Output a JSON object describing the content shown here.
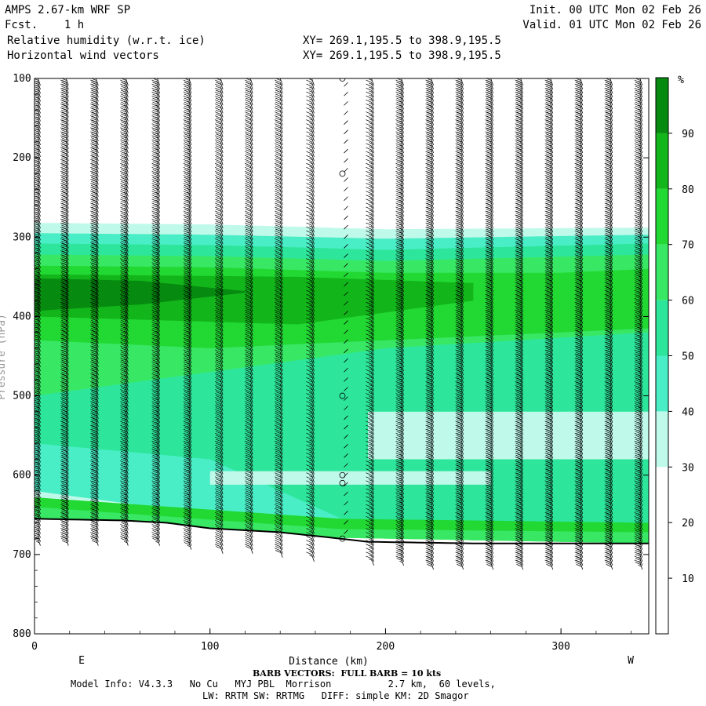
{
  "header": {
    "model_title": "AMPS 2.67-km WRF SP",
    "forecast": "Fcst.    1 h",
    "field_1": "Relative humidity (w.r.t. ice)",
    "field_2": "Horizontal wind vectors",
    "init": "Init. 00 UTC Mon 02 Feb 26",
    "valid": "Valid. 01 UTC Mon 02 Feb 26",
    "xy_1": "XY= 269.1,195.5 to 398.9,195.5",
    "xy_2": "XY= 269.1,195.5 to 398.9,195.5"
  },
  "footer": {
    "barb_note": "BARB VECTORS:  FULL BARB = 10 kts",
    "model_info": "Model Info: V4.3.3   No Cu   MYJ PBL  Morrison          2.7 km,  60 levels,",
    "physics_info": "LW: RRTM SW: RRTMG   DIFF: simple KM: 2D Smagor"
  },
  "chart_data": {
    "type": "heatmap",
    "title": "Relative humidity (w.r.t. ice) cross-section with horizontal wind barbs",
    "xlabel": "Distance (km)",
    "ylabel": "Pressure (hPa)",
    "xlim": [
      0,
      350
    ],
    "ylim": [
      100,
      800
    ],
    "x_ticks": [
      0,
      100,
      200,
      300
    ],
    "y_ticks": [
      100,
      200,
      300,
      400,
      500,
      600,
      700,
      800
    ],
    "x_end_labels": {
      "left": "E",
      "right": "W"
    },
    "colorbar": {
      "unit": "%",
      "ticks": [
        10,
        20,
        30,
        40,
        50,
        60,
        70,
        80,
        90
      ],
      "levels": [
        {
          "from": 0,
          "to": 30,
          "color": "#ffffff"
        },
        {
          "from": 30,
          "to": 40,
          "color": "#bff9ea"
        },
        {
          "from": 40,
          "to": 50,
          "color": "#4aeec6"
        },
        {
          "from": 50,
          "to": 60,
          "color": "#2de69b"
        },
        {
          "from": 60,
          "to": 70,
          "color": "#38e864"
        },
        {
          "from": 70,
          "to": 80,
          "color": "#22d833"
        },
        {
          "from": 80,
          "to": 90,
          "color": "#12b51a"
        },
        {
          "from": 90,
          "to": 100,
          "color": "#068b10"
        }
      ]
    },
    "terrain_surface_hpa": [
      [
        0,
        655
      ],
      [
        50,
        657
      ],
      [
        75,
        660
      ],
      [
        100,
        667
      ],
      [
        140,
        672
      ],
      [
        170,
        679
      ],
      [
        190,
        684
      ],
      [
        250,
        686
      ],
      [
        350,
        686
      ]
    ],
    "rh_layers": [
      {
        "rh": 35,
        "top": [
          [
            0,
            282
          ],
          [
            100,
            284
          ],
          [
            200,
            290
          ],
          [
            350,
            288
          ]
        ],
        "bottom": [
          [
            0,
            650
          ],
          [
            175,
            676
          ],
          [
            350,
            680
          ]
        ]
      },
      {
        "rh": 45,
        "top": [
          [
            0,
            295
          ],
          [
            100,
            297
          ],
          [
            200,
            302
          ],
          [
            350,
            297
          ]
        ],
        "bottom": [
          [
            0,
            620
          ],
          [
            175,
            672
          ],
          [
            350,
            678
          ]
        ]
      },
      {
        "rh": 55,
        "top": [
          [
            0,
            308
          ],
          [
            100,
            310
          ],
          [
            200,
            316
          ],
          [
            350,
            308
          ]
        ],
        "bottom": [
          [
            0,
            560
          ],
          [
            100,
            580
          ],
          [
            175,
            655
          ],
          [
            350,
            676
          ]
        ]
      },
      {
        "rh": 65,
        "top": [
          [
            0,
            322
          ],
          [
            100,
            324
          ],
          [
            200,
            330
          ],
          [
            350,
            322
          ]
        ],
        "bottom": [
          [
            0,
            500
          ],
          [
            100,
            470
          ],
          [
            200,
            440
          ],
          [
            350,
            420
          ]
        ]
      },
      {
        "rh": 75,
        "top": [
          [
            0,
            336
          ],
          [
            100,
            338
          ],
          [
            200,
            345
          ],
          [
            300,
            345
          ],
          [
            350,
            340
          ]
        ],
        "bottom": [
          [
            0,
            430
          ],
          [
            100,
            440
          ],
          [
            200,
            430
          ],
          [
            350,
            415
          ]
        ]
      },
      {
        "rh": 85,
        "top": [
          [
            0,
            347
          ],
          [
            150,
            350
          ],
          [
            250,
            358
          ]
        ],
        "bottom": [
          [
            0,
            400
          ],
          [
            150,
            410
          ],
          [
            250,
            380
          ]
        ]
      },
      {
        "rh": 95,
        "top": [
          [
            0,
            352
          ],
          [
            60,
            355
          ],
          [
            120,
            368
          ]
        ],
        "bottom": [
          [
            0,
            393
          ],
          [
            60,
            385
          ],
          [
            120,
            370
          ]
        ]
      }
    ],
    "rh_near_surface_bands": [
      {
        "rh": 75,
        "top": [
          [
            0,
            628
          ],
          [
            175,
            655
          ],
          [
            350,
            660
          ]
        ],
        "bottom": [
          [
            0,
            655
          ],
          [
            175,
            679
          ],
          [
            350,
            686
          ]
        ]
      },
      {
        "rh": 65,
        "top": [
          [
            0,
            640
          ],
          [
            175,
            668
          ],
          [
            350,
            672
          ]
        ],
        "bottom": [
          [
            0,
            655
          ],
          [
            175,
            679
          ],
          [
            350,
            686
          ]
        ]
      }
    ],
    "rh_dry_slots": [
      {
        "rh": 35,
        "pressure": [
          520,
          580
        ],
        "x_from": 190,
        "x_to": 350
      },
      {
        "rh": 35,
        "pressure": [
          595,
          612
        ],
        "x_from": 100,
        "x_to": 260
      },
      {
        "rh": 45,
        "pressure": [
          582,
          598
        ],
        "x_from": 0,
        "x_to": 100
      }
    ],
    "wind_barb_columns_km": [
      2,
      18,
      35,
      52,
      70,
      88,
      106,
      123,
      140,
      158,
      175,
      192,
      209,
      226,
      243,
      260,
      277,
      294,
      311,
      328,
      345
    ],
    "wind_barb_levels_hpa_step": 5,
    "wind_speed_kts_by_column": [
      25,
      30,
      30,
      25,
      25,
      25,
      20,
      20,
      20,
      15,
      0,
      15,
      25,
      30,
      30,
      30,
      30,
      30,
      30,
      30,
      25
    ],
    "calm_circles": [
      {
        "x": 175,
        "p": 100
      },
      {
        "x": 175,
        "p": 220
      },
      {
        "x": 175,
        "p": 500
      },
      {
        "x": 175,
        "p": 600
      },
      {
        "x": 175,
        "p": 610
      },
      {
        "x": 175,
        "p": 680
      }
    ]
  }
}
